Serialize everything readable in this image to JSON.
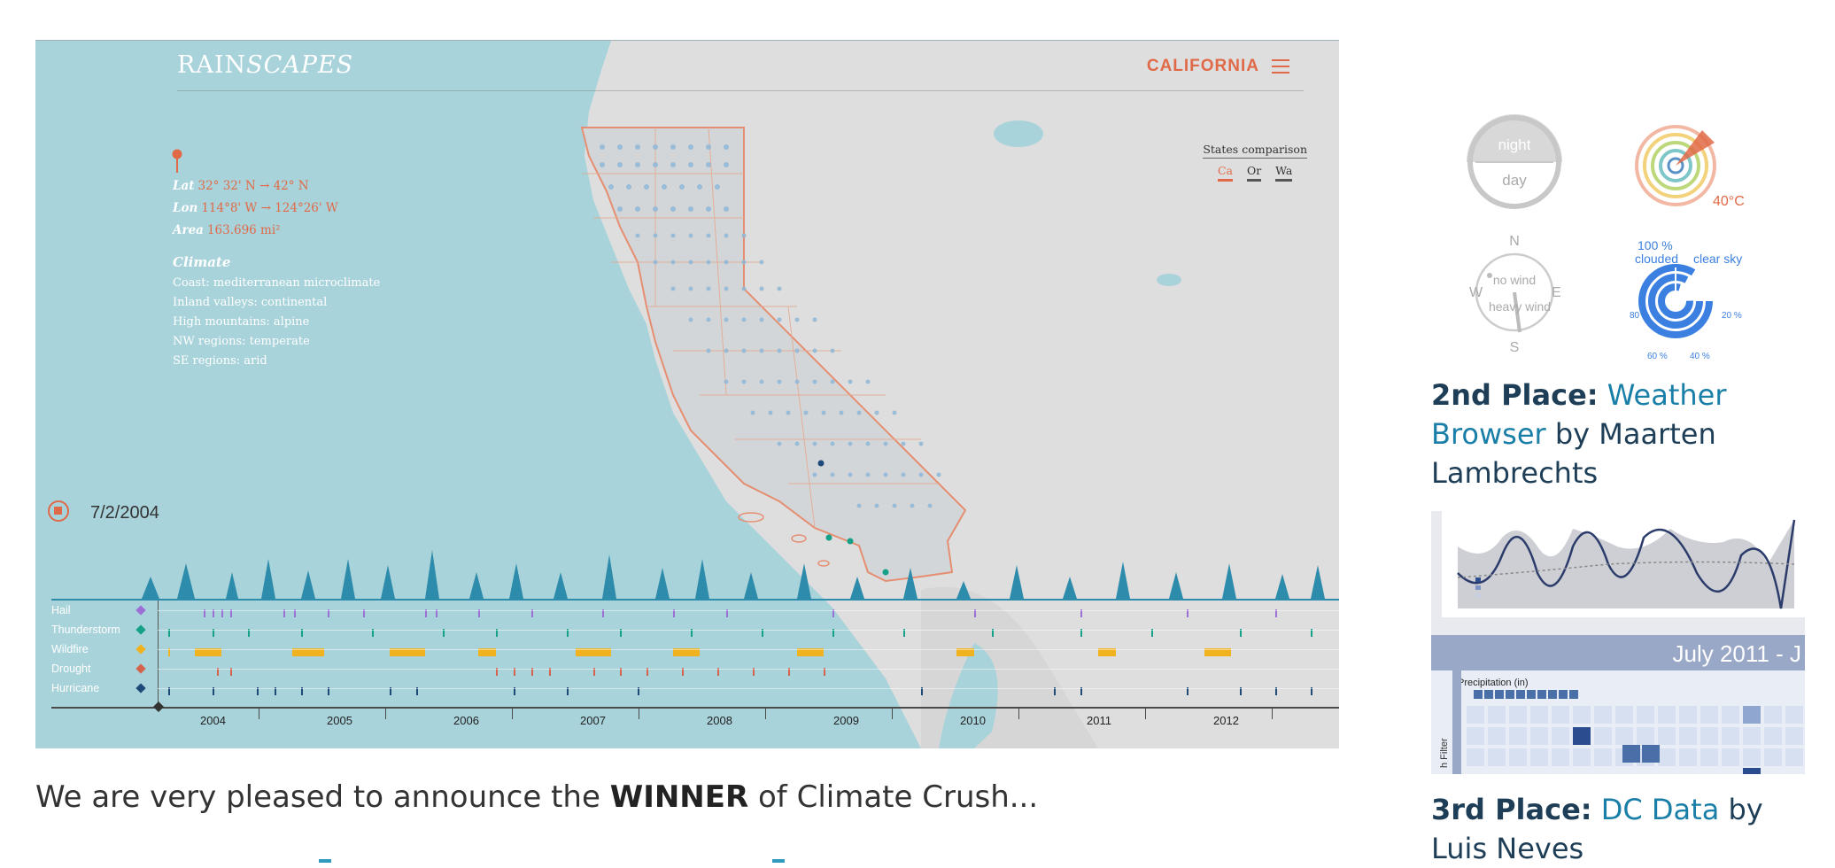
{
  "hero": {
    "brand_prefix": "RAIN",
    "brand_suffix": "SCAPES",
    "state_menu": "CALIFORNIA",
    "info": {
      "lat_label": "Lat",
      "lat_value": "32° 32' N → 42° N",
      "lon_label": "Lon",
      "lon_value": "114°8' W → 124°26' W",
      "area_label": "Area",
      "area_value": "163.696 mi²",
      "climate_heading": "Climate",
      "climate_lines": [
        "Coast: mediterranean microclimate",
        "Inland valleys: continental",
        "High mountains: alpine",
        "NW regions: temperate",
        "SE regions: arid"
      ]
    },
    "compare": {
      "title": "States comparison",
      "options": [
        "Ca",
        "Or",
        "Wa"
      ]
    },
    "date": "7/2/2004",
    "tracks": [
      {
        "label": "Hail",
        "color": "#9b6fd6"
      },
      {
        "label": "Thunderstorm",
        "color": "#15a08a"
      },
      {
        "label": "Wildfire",
        "color": "#f0b21f"
      },
      {
        "label": "Drought",
        "color": "#d4634c"
      },
      {
        "label": "Hurricane",
        "color": "#1e4a7a"
      }
    ],
    "years": [
      "2004",
      "2005",
      "2006",
      "2007",
      "2008",
      "2009",
      "2010",
      "2011",
      "2012"
    ]
  },
  "announcement": {
    "text_before": "We are very pleased to announce the ",
    "winner": "WINNER",
    "text_after": " of Climate Crush..."
  },
  "sidebar": {
    "widgets": {
      "night": "night",
      "day": "day",
      "temp": "40°C",
      "compass": {
        "n": "N",
        "s": "S",
        "e": "E",
        "w": "W",
        "no_wind": "no wind",
        "heavy_wind": "heavy wind"
      },
      "cloud": {
        "pct100": "100 %",
        "clouded": "clouded",
        "clear": "clear sky",
        "p80": "80 %",
        "p60": "60 %",
        "p40": "40 %",
        "p20": "20 %"
      }
    },
    "second": {
      "place": "2nd Place:",
      "title_a": "Weather",
      "title_b": "Browser",
      "by": " by Maarten",
      "author_b": "Lambrechts"
    },
    "thumb": {
      "banner": "July 2011 - J",
      "precip": "Precipitation (in)",
      "filter": "h Filter"
    },
    "third": {
      "place": "3rd Place:",
      "title": "DC Data",
      "by": " by",
      "author_b": "Luis Neves"
    }
  },
  "colors": {
    "accent": "#e06a48",
    "link": "#1a7fa8",
    "heading": "#1d3e56",
    "map_sea": "#a9d3da",
    "map_land": "#dcdcdc"
  }
}
